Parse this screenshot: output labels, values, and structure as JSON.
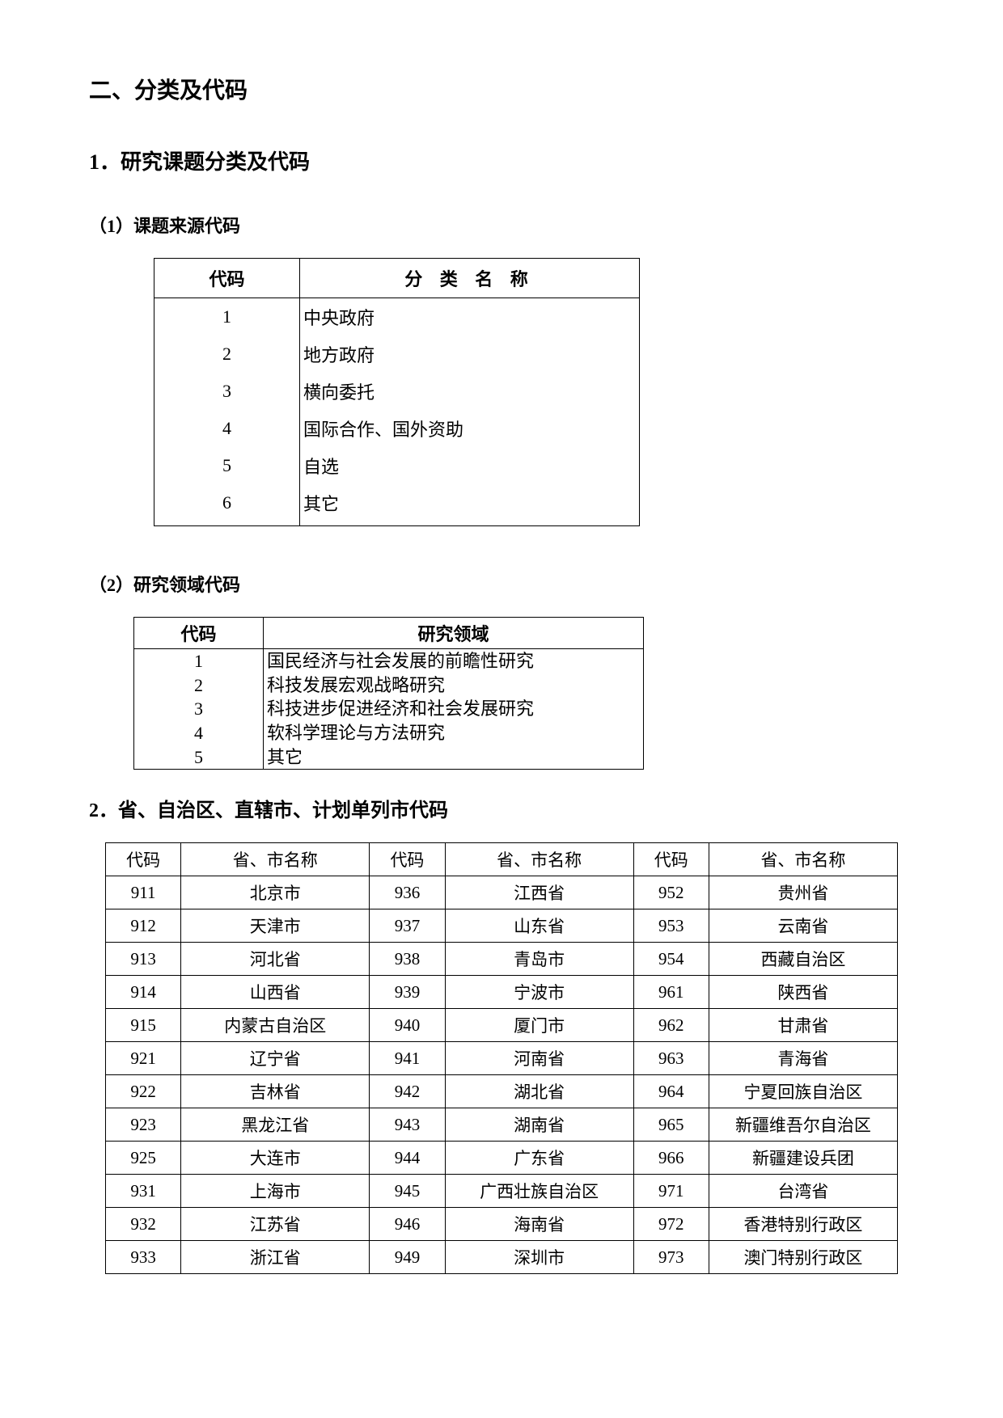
{
  "headings": {
    "main": "二、分类及代码",
    "sub1": "1．研究课题分类及代码",
    "sub1a": "（1）课题来源代码",
    "sub1b": "（2）研究领域代码",
    "sub2": "2．省、自治区、直辖市、计划单列市代码"
  },
  "table1": {
    "header_code": "代码",
    "header_name": "分 类 名 称",
    "rows": [
      {
        "code": "1",
        "name": "中央政府"
      },
      {
        "code": "2",
        "name": "地方政府"
      },
      {
        "code": "3",
        "name": "横向委托"
      },
      {
        "code": "4",
        "name": "国际合作、国外资助"
      },
      {
        "code": "5",
        "name": "自选"
      },
      {
        "code": "6",
        "name": "其它"
      }
    ]
  },
  "table2": {
    "header_code": "代码",
    "header_name": "研究领域",
    "rows": [
      {
        "code": "1",
        "name": "国民经济与社会发展的前瞻性研究"
      },
      {
        "code": "2",
        "name": "科技发展宏观战略研究"
      },
      {
        "code": "3",
        "name": "科技进步促进经济和社会发展研究"
      },
      {
        "code": "4",
        "name": "软科学理论与方法研究"
      },
      {
        "code": "5",
        "name": "其它"
      }
    ]
  },
  "table3": {
    "header_code": "代码",
    "header_name": "省、市名称",
    "rows": [
      {
        "c1": "911",
        "n1": "北京市",
        "c2": "936",
        "n2": "江西省",
        "c3": "952",
        "n3": "贵州省"
      },
      {
        "c1": "912",
        "n1": "天津市",
        "c2": "937",
        "n2": "山东省",
        "c3": "953",
        "n3": "云南省"
      },
      {
        "c1": "913",
        "n1": "河北省",
        "c2": "938",
        "n2": "青岛市",
        "c3": "954",
        "n3": "西藏自治区"
      },
      {
        "c1": "914",
        "n1": "山西省",
        "c2": "939",
        "n2": "宁波市",
        "c3": "961",
        "n3": "陕西省"
      },
      {
        "c1": "915",
        "n1": "内蒙古自治区",
        "c2": "940",
        "n2": "厦门市",
        "c3": "962",
        "n3": "甘肃省"
      },
      {
        "c1": "921",
        "n1": "辽宁省",
        "c2": "941",
        "n2": "河南省",
        "c3": "963",
        "n3": "青海省"
      },
      {
        "c1": "922",
        "n1": "吉林省",
        "c2": "942",
        "n2": "湖北省",
        "c3": "964",
        "n3": "宁夏回族自治区"
      },
      {
        "c1": "923",
        "n1": "黑龙江省",
        "c2": "943",
        "n2": "湖南省",
        "c3": "965",
        "n3": "新疆维吾尔自治区"
      },
      {
        "c1": "925",
        "n1": "大连市",
        "c2": "944",
        "n2": "广东省",
        "c3": "966",
        "n3": "新疆建设兵团"
      },
      {
        "c1": "931",
        "n1": "上海市",
        "c2": "945",
        "n2": "广西壮族自治区",
        "c3": "971",
        "n3": "台湾省"
      },
      {
        "c1": "932",
        "n1": "江苏省",
        "c2": "946",
        "n2": "海南省",
        "c3": "972",
        "n3": "香港特别行政区"
      },
      {
        "c1": "933",
        "n1": "浙江省",
        "c2": "949",
        "n2": "深圳市",
        "c3": "973",
        "n3": "澳门特别行政区"
      }
    ]
  },
  "style": {
    "page_bg": "#ffffff",
    "text_color": "#000000",
    "border_color": "#000000",
    "heading_main_fontsize": 28,
    "heading_sub_fontsize": 26,
    "body_fontsize": 22,
    "font_family": "SimSun"
  }
}
